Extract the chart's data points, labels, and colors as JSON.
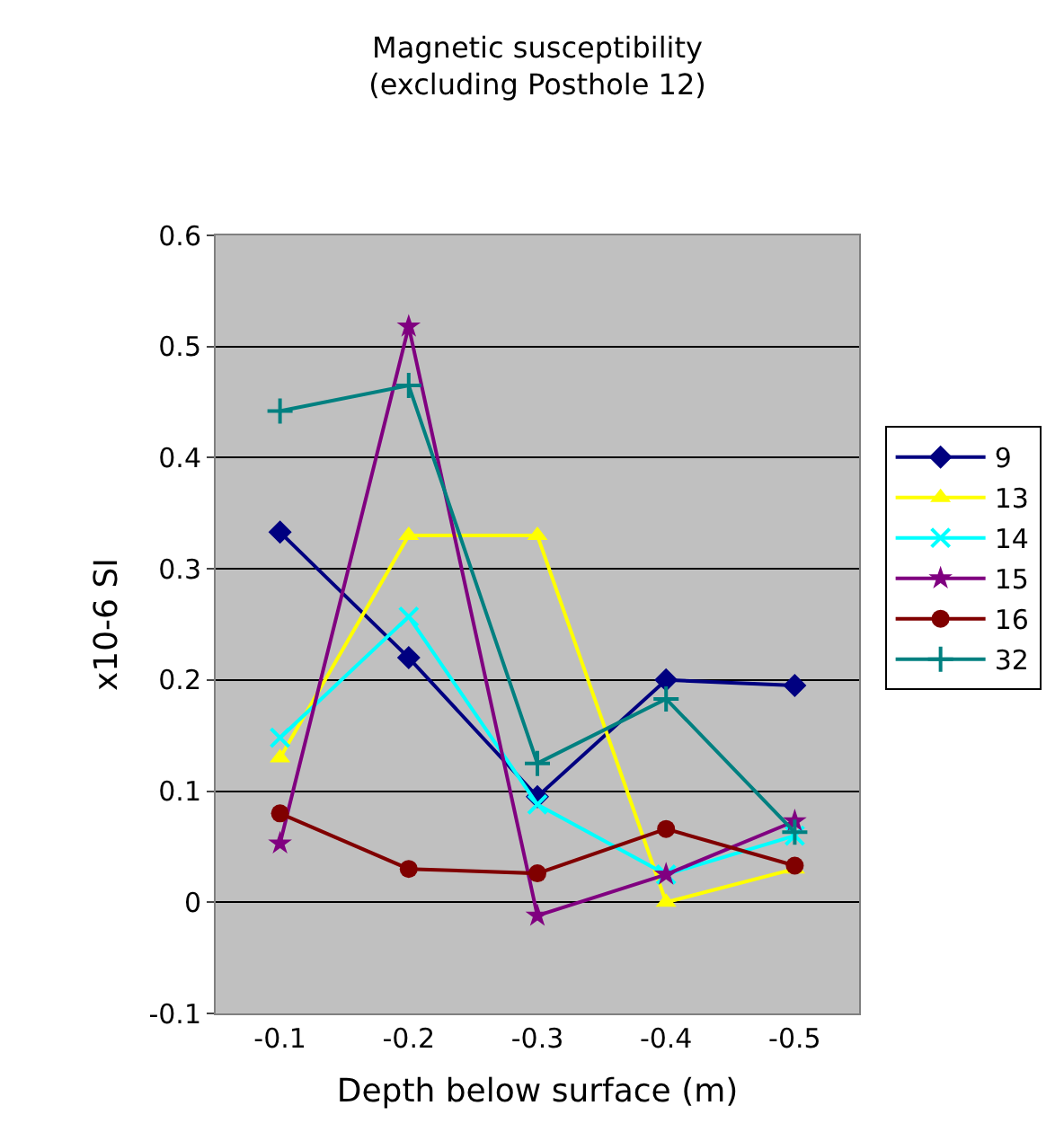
{
  "chart_data": {
    "type": "line",
    "title": "Magnetic susceptibility",
    "subtitle": "(excluding Posthole 12)",
    "xlabel": "Depth below surface (m)",
    "ylabel": "x10-6 SI",
    "categories": [
      "-0.1",
      "-0.2",
      "-0.3",
      "-0.4",
      "-0.5"
    ],
    "series": [
      {
        "name": "9",
        "color": "#000080",
        "marker": "diamond",
        "values": [
          0.333,
          0.22,
          0.095,
          0.2,
          0.195
        ]
      },
      {
        "name": "13",
        "color": "#ffff00",
        "marker": "triangle",
        "values": [
          0.13,
          0.33,
          0.33,
          0.0,
          0.03
        ]
      },
      {
        "name": "14",
        "color": "#00ffff",
        "marker": "x",
        "values": [
          0.148,
          0.257,
          0.088,
          0.025,
          0.06
        ]
      },
      {
        "name": "15",
        "color": "#800080",
        "marker": "star",
        "values": [
          0.053,
          0.518,
          -0.012,
          0.025,
          0.073
        ]
      },
      {
        "name": "16",
        "color": "#800000",
        "marker": "circle",
        "values": [
          0.08,
          0.03,
          0.026,
          0.066,
          0.033
        ]
      },
      {
        "name": "32",
        "color": "#008080",
        "marker": "cross",
        "values": [
          0.442,
          0.465,
          0.125,
          0.183,
          0.063
        ]
      }
    ],
    "ylim": [
      -0.1,
      0.6
    ],
    "yticks": [
      -0.1,
      0,
      0.1,
      0.2,
      0.3,
      0.4,
      0.5,
      0.6
    ],
    "grid": "y",
    "legend": "right"
  }
}
